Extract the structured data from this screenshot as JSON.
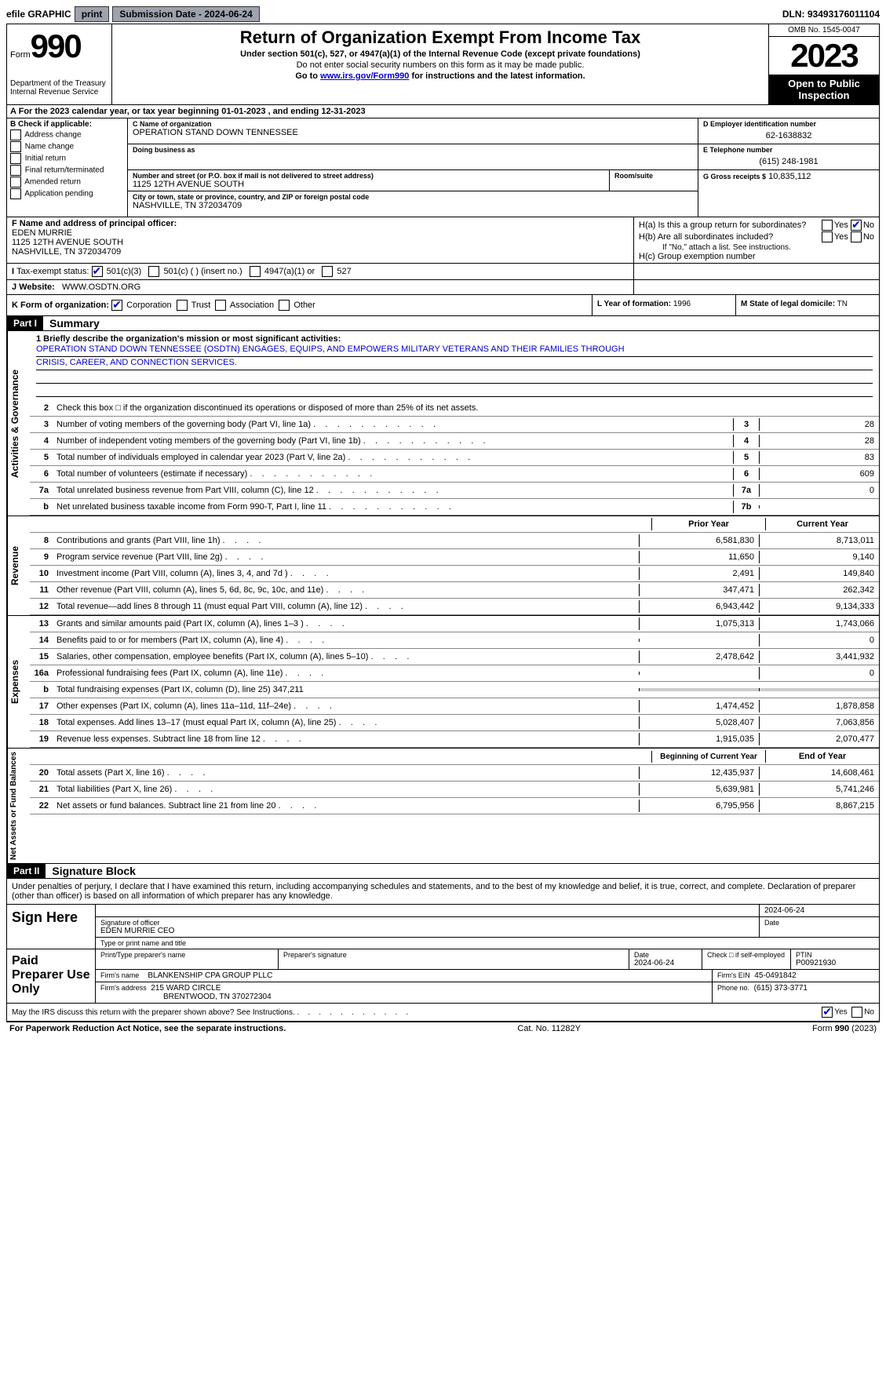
{
  "topbar": {
    "efile": "efile GRAPHIC",
    "print": "print",
    "submission_label": "Submission Date - 2024-06-24",
    "dln_label": "DLN: 93493176011104"
  },
  "header": {
    "form_word": "Form",
    "form_num": "990",
    "dept": "Department of the Treasury Internal Revenue Service",
    "title": "Return of Organization Exempt From Income Tax",
    "sub1": "Under section 501(c), 527, or 4947(a)(1) of the Internal Revenue Code (except private foundations)",
    "sub2": "Do not enter social security numbers on this form as it may be made public.",
    "sub3_pre": "Go to ",
    "sub3_link": "www.irs.gov/Form990",
    "sub3_post": " for instructions and the latest information.",
    "omb": "OMB No. 1545-0047",
    "year": "2023",
    "inspect": "Open to Public Inspection"
  },
  "row_a": "For the 2023 calendar year, or tax year beginning 01-01-2023   , and ending 12-31-2023",
  "section_b": {
    "label": "B Check if applicable:",
    "opts": [
      "Address change",
      "Name change",
      "Initial return",
      "Final return/terminated",
      "Amended return",
      "Application pending"
    ]
  },
  "section_c": {
    "name_lbl": "C Name of organization",
    "name": "OPERATION STAND DOWN TENNESSEE",
    "dba_lbl": "Doing business as",
    "dba": "",
    "addr_lbl": "Number and street (or P.O. box if mail is not delivered to street address)",
    "addr": "1125 12TH AVENUE SOUTH",
    "room_lbl": "Room/suite",
    "city_lbl": "City or town, state or province, country, and ZIP or foreign postal code",
    "city": "NASHVILLE, TN  372034709"
  },
  "section_d": {
    "ein_lbl": "D Employer identification number",
    "ein": "62-1638832",
    "tel_lbl": "E Telephone number",
    "tel": "(615) 248-1981",
    "gross_lbl": "G Gross receipts $",
    "gross": "10,835,112"
  },
  "section_f": {
    "lbl": "F  Name and address of principal officer:",
    "name": "EDEN MURRIE",
    "addr1": "1125 12TH AVENUE SOUTH",
    "addr2": "NASHVILLE, TN  372034709"
  },
  "section_h": {
    "ha": "H(a)  Is this a group return for subordinates?",
    "hb": "H(b)  Are all subordinates included?",
    "hb_note": "If \"No,\" attach a list. See instructions.",
    "hc": "H(c)  Group exemption number",
    "yes": "Yes",
    "no": "No"
  },
  "row_i": {
    "lbl": "Tax-exempt status:",
    "o1": "501(c)(3)",
    "o2": "501(c) (  ) (insert no.)",
    "o3": "4947(a)(1) or",
    "o4": "527"
  },
  "row_j": {
    "lbl": "Website:",
    "val": "WWW.OSDTN.ORG"
  },
  "row_k": {
    "lbl": "K Form of organization:",
    "o1": "Corporation",
    "o2": "Trust",
    "o3": "Association",
    "o4": "Other",
    "l_lbl": "L Year of formation:",
    "l_val": "1996",
    "m_lbl": "M State of legal domicile:",
    "m_val": "TN"
  },
  "part1": {
    "hdr": "Part I",
    "title": "Summary"
  },
  "tab_ag": "Activities & Governance",
  "tab_rev": "Revenue",
  "tab_exp": "Expenses",
  "tab_net": "Net Assets or Fund Balances",
  "mission": {
    "lbl": "1   Briefly describe the organization's mission or most significant activities:",
    "line1": "OPERATION STAND DOWN TENNESSEE (OSDTN) ENGAGES, EQUIPS, AND EMPOWERS MILITARY VETERANS AND THEIR FAMILIES THROUGH",
    "line2": "CRISIS, CAREER, AND CONNECTION SERVICES."
  },
  "lines_ag": [
    {
      "n": "2",
      "d": "Check this box □ if the organization discontinued its operations or disposed of more than 25% of its net assets."
    },
    {
      "n": "3",
      "d": "Number of voting members of the governing body (Part VI, line 1a)",
      "box": "3",
      "v": "28"
    },
    {
      "n": "4",
      "d": "Number of independent voting members of the governing body (Part VI, line 1b)",
      "box": "4",
      "v": "28"
    },
    {
      "n": "5",
      "d": "Total number of individuals employed in calendar year 2023 (Part V, line 2a)",
      "box": "5",
      "v": "83"
    },
    {
      "n": "6",
      "d": "Total number of volunteers (estimate if necessary)",
      "box": "6",
      "v": "609"
    },
    {
      "n": "7a",
      "d": "Total unrelated business revenue from Part VIII, column (C), line 12",
      "box": "7a",
      "v": "0"
    },
    {
      "n": "b",
      "d": "Net unrelated business taxable income from Form 990-T, Part I, line 11",
      "box": "7b",
      "v": ""
    }
  ],
  "year_prior": "Prior Year",
  "year_curr": "Current Year",
  "lines_rev": [
    {
      "n": "8",
      "d": "Contributions and grants (Part VIII, line 1h)",
      "p": "6,581,830",
      "c": "8,713,011"
    },
    {
      "n": "9",
      "d": "Program service revenue (Part VIII, line 2g)",
      "p": "11,650",
      "c": "9,140"
    },
    {
      "n": "10",
      "d": "Investment income (Part VIII, column (A), lines 3, 4, and 7d )",
      "p": "2,491",
      "c": "149,840"
    },
    {
      "n": "11",
      "d": "Other revenue (Part VIII, column (A), lines 5, 6d, 8c, 9c, 10c, and 11e)",
      "p": "347,471",
      "c": "262,342"
    },
    {
      "n": "12",
      "d": "Total revenue—add lines 8 through 11 (must equal Part VIII, column (A), line 12)",
      "p": "6,943,442",
      "c": "9,134,333"
    }
  ],
  "lines_exp": [
    {
      "n": "13",
      "d": "Grants and similar amounts paid (Part IX, column (A), lines 1–3 )",
      "p": "1,075,313",
      "c": "1,743,066"
    },
    {
      "n": "14",
      "d": "Benefits paid to or for members (Part IX, column (A), line 4)",
      "p": "",
      "c": "0"
    },
    {
      "n": "15",
      "d": "Salaries, other compensation, employee benefits (Part IX, column (A), lines 5–10)",
      "p": "2,478,642",
      "c": "3,441,932"
    },
    {
      "n": "16a",
      "d": "Professional fundraising fees (Part IX, column (A), line 11e)",
      "p": "",
      "c": "0"
    },
    {
      "n": "b",
      "d": "Total fundraising expenses (Part IX, column (D), line 25) 347,211",
      "grey": true
    },
    {
      "n": "17",
      "d": "Other expenses (Part IX, column (A), lines 11a–11d, 11f–24e)",
      "p": "1,474,452",
      "c": "1,878,858"
    },
    {
      "n": "18",
      "d": "Total expenses. Add lines 13–17 (must equal Part IX, column (A), line 25)",
      "p": "5,028,407",
      "c": "7,063,856"
    },
    {
      "n": "19",
      "d": "Revenue less expenses. Subtract line 18 from line 12",
      "p": "1,915,035",
      "c": "2,070,477"
    }
  ],
  "year_beg": "Beginning of Current Year",
  "year_end": "End of Year",
  "lines_net": [
    {
      "n": "20",
      "d": "Total assets (Part X, line 16)",
      "p": "12,435,937",
      "c": "14,608,461"
    },
    {
      "n": "21",
      "d": "Total liabilities (Part X, line 26)",
      "p": "5,639,981",
      "c": "5,741,246"
    },
    {
      "n": "22",
      "d": "Net assets or fund balances. Subtract line 21 from line 20",
      "p": "6,795,956",
      "c": "8,867,215"
    }
  ],
  "part2": {
    "hdr": "Part II",
    "title": "Signature Block"
  },
  "penalty": "Under penalties of perjury, I declare that I have examined this return, including accompanying schedules and statements, and to the best of my knowledge and belief, it is true, correct, and complete. Declaration of preparer (other than officer) is based on all information of which preparer has any knowledge.",
  "sign_here": "Sign Here",
  "sig_officer_lbl": "Signature of officer",
  "sig_officer": "EDEN MURRIE CEO",
  "sig_type_lbl": "Type or print name and title",
  "sig_date_lbl": "Date",
  "sig_date": "2024-06-24",
  "paid": "Paid Preparer Use Only",
  "prep_name_lbl": "Print/Type preparer's name",
  "prep_sig_lbl": "Preparer's signature",
  "prep_date_lbl": "Date",
  "prep_date": "2024-06-24",
  "prep_check_lbl": "Check □ if self-employed",
  "ptin_lbl": "PTIN",
  "ptin": "P00921930",
  "firm_name_lbl": "Firm's name",
  "firm_name": "BLANKENSHIP CPA GROUP PLLC",
  "firm_ein_lbl": "Firm's EIN",
  "firm_ein": "45-0491842",
  "firm_addr_lbl": "Firm's address",
  "firm_addr1": "215 WARD CIRCLE",
  "firm_addr2": "BRENTWOOD, TN  370272304",
  "firm_phone_lbl": "Phone no.",
  "firm_phone": "(615) 373-3771",
  "discuss": "May the IRS discuss this return with the preparer shown above? See Instructions.",
  "footer_left": "For Paperwork Reduction Act Notice, see the separate instructions.",
  "footer_mid": "Cat. No. 11282Y",
  "footer_right": "Form 990 (2023)"
}
